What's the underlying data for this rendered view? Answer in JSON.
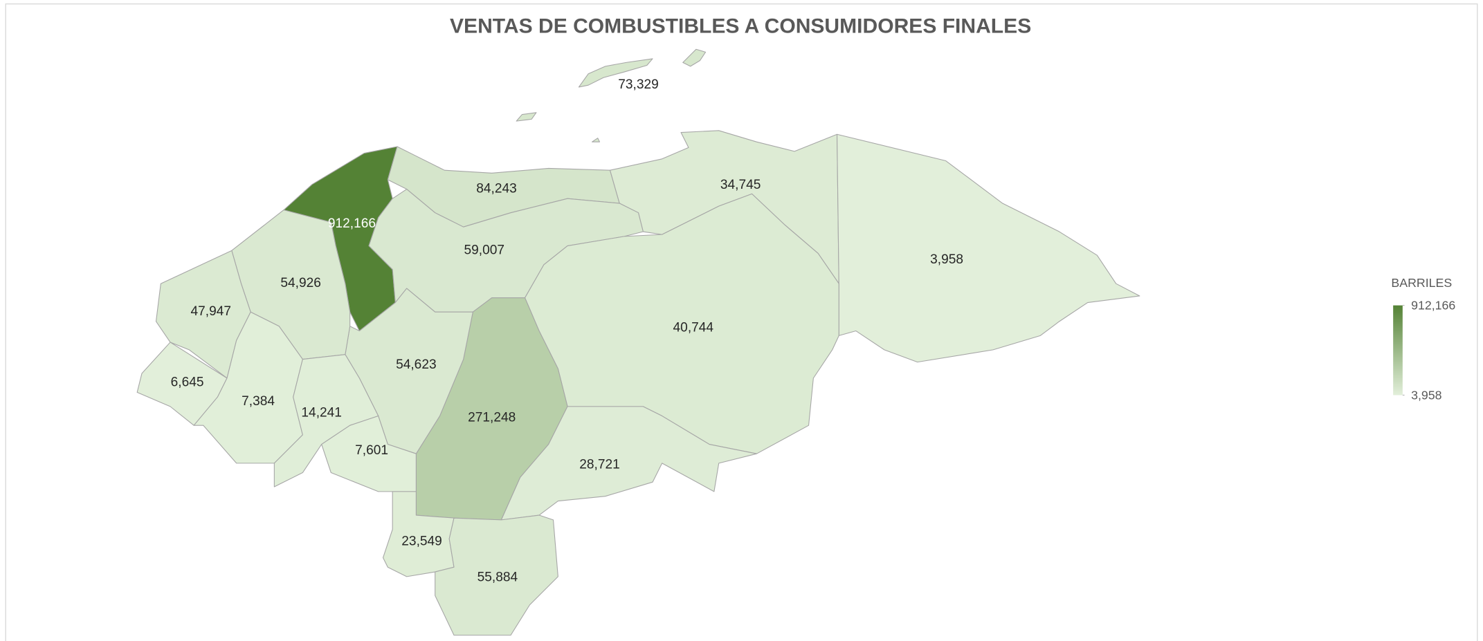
{
  "chart_data": {
    "type": "choropleth",
    "title": "VENTAS DE COMBUSTIBLES A CONSUMIDORES FINALES",
    "values": [
      73329,
      912166,
      84243,
      34745,
      3958,
      59007,
      40744,
      271248,
      54623,
      54926,
      47947,
      6645,
      7384,
      14241,
      7601,
      28721,
      23549,
      55884
    ],
    "value_labels": [
      "73,329",
      "912,166",
      "84,243",
      "34,745",
      "3,958",
      "59,007",
      "40,744",
      "271,248",
      "54,623",
      "54,926",
      "47,947",
      "6,645",
      "7,384",
      "14,241",
      "7,601",
      "28,721",
      "23,549",
      "55,884"
    ],
    "legend_title": "BARRILES",
    "clim": [
      3958,
      912166
    ],
    "cticks": [
      {
        "value": 3958,
        "label": "3,958"
      },
      {
        "value": 912166,
        "label": "912,166"
      }
    ],
    "color_min": "#e2efda",
    "color_max": "#548235"
  }
}
